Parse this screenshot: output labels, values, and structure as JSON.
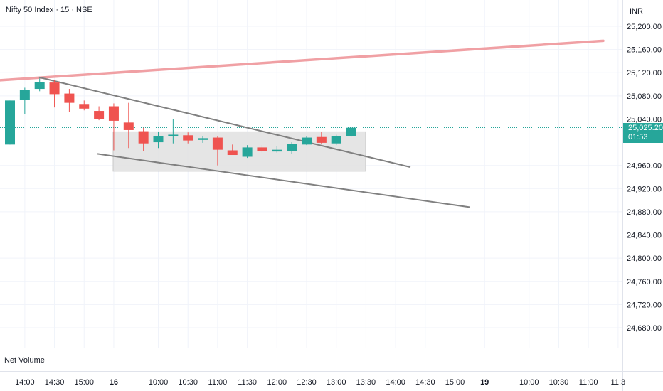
{
  "header": {
    "symbol_title": "Nifty 50 Index · 15 · NSE",
    "currency": "INR"
  },
  "indicator": {
    "label": "Net Volume"
  },
  "last_price": {
    "value": "25,025.20",
    "countdown": "01:53"
  },
  "colors": {
    "up": "#26a69a",
    "down": "#ef5350",
    "resistance_line": "#f0a0a4",
    "trend_line": "#808080",
    "range_box": "#e0e0e0",
    "grid": "#f0f3fa",
    "last_price_line": "#26a69a"
  },
  "chart_data": {
    "type": "candlestick",
    "ylim": [
      24640,
      25230
    ],
    "y_ticks": [
      "25,200.00",
      "25,160.00",
      "25,120.00",
      "25,080.00",
      "25,040.00",
      "24,960.00",
      "24,920.00",
      "24,880.00",
      "24,840.00",
      "24,800.00",
      "24,760.00",
      "24,720.00",
      "24,680.00"
    ],
    "y_tick_values": [
      25200,
      25160,
      25120,
      25080,
      25040,
      24960,
      24920,
      24880,
      24840,
      24800,
      24760,
      24720,
      24680
    ],
    "x_ticks": [
      {
        "label": "14:00",
        "bar": 1
      },
      {
        "label": "14:30",
        "bar": 3
      },
      {
        "label": "15:00",
        "bar": 5
      },
      {
        "label": "16",
        "bar": 7
      },
      {
        "label": "10:00",
        "bar": 10
      },
      {
        "label": "10:30",
        "bar": 12
      },
      {
        "label": "11:00",
        "bar": 14
      },
      {
        "label": "11:30",
        "bar": 16
      },
      {
        "label": "12:00",
        "bar": 18
      },
      {
        "label": "12:30",
        "bar": 20
      },
      {
        "label": "13:00",
        "bar": 22
      },
      {
        "label": "13:30",
        "bar": 24
      },
      {
        "label": "14:00",
        "bar": 26
      },
      {
        "label": "14:30",
        "bar": 28
      },
      {
        "label": "15:00",
        "bar": 30
      },
      {
        "label": "19",
        "bar": 32
      },
      {
        "label": "10:00",
        "bar": 35
      },
      {
        "label": "10:30",
        "bar": 37
      },
      {
        "label": "11:00",
        "bar": 39
      },
      {
        "label": "11:3",
        "bar": 41
      }
    ],
    "candles": [
      {
        "bar": 0,
        "o": 24996,
        "h": 25072,
        "l": 24996,
        "c": 25072
      },
      {
        "bar": 1,
        "o": 25073,
        "h": 25094,
        "l": 25048,
        "c": 25090
      },
      {
        "bar": 2,
        "o": 25092,
        "h": 25110,
        "l": 25088,
        "c": 25104
      },
      {
        "bar": 3,
        "o": 25103,
        "h": 25107,
        "l": 25060,
        "c": 25083
      },
      {
        "bar": 4,
        "o": 25084,
        "h": 25092,
        "l": 25052,
        "c": 25068
      },
      {
        "bar": 5,
        "o": 25066,
        "h": 25072,
        "l": 25055,
        "c": 25058
      },
      {
        "bar": 6,
        "o": 25054,
        "h": 25062,
        "l": 25038,
        "c": 25040
      },
      {
        "bar": 7,
        "o": 25062,
        "h": 25067,
        "l": 24986,
        "c": 25037
      },
      {
        "bar": 8,
        "o": 25034,
        "h": 25068,
        "l": 24990,
        "c": 25021
      },
      {
        "bar": 9,
        "o": 25019,
        "h": 25025,
        "l": 24985,
        "c": 24998
      },
      {
        "bar": 10,
        "o": 25000,
        "h": 25018,
        "l": 24990,
        "c": 25011
      },
      {
        "bar": 11,
        "o": 25011,
        "h": 25040,
        "l": 24998,
        "c": 25013
      },
      {
        "bar": 12,
        "o": 25012,
        "h": 25017,
        "l": 24998,
        "c": 25003
      },
      {
        "bar": 13,
        "o": 25004,
        "h": 25011,
        "l": 24999,
        "c": 25007
      },
      {
        "bar": 14,
        "o": 25008,
        "h": 25010,
        "l": 24960,
        "c": 24987
      },
      {
        "bar": 15,
        "o": 24986,
        "h": 24996,
        "l": 24978,
        "c": 24978
      },
      {
        "bar": 16,
        "o": 24975,
        "h": 24995,
        "l": 24973,
        "c": 24991
      },
      {
        "bar": 17,
        "o": 24991,
        "h": 24995,
        "l": 24982,
        "c": 24985
      },
      {
        "bar": 18,
        "o": 24984,
        "h": 24993,
        "l": 24982,
        "c": 24987
      },
      {
        "bar": 19,
        "o": 24985,
        "h": 25000,
        "l": 24980,
        "c": 24997
      },
      {
        "bar": 20,
        "o": 24996,
        "h": 25010,
        "l": 24995,
        "c": 25008
      },
      {
        "bar": 21,
        "o": 25009,
        "h": 25018,
        "l": 24997,
        "c": 24999
      },
      {
        "bar": 22,
        "o": 24998,
        "h": 25013,
        "l": 24995,
        "c": 25011
      },
      {
        "bar": 23,
        "o": 25010,
        "h": 25027,
        "l": 25009,
        "c": 25025
      }
    ]
  }
}
